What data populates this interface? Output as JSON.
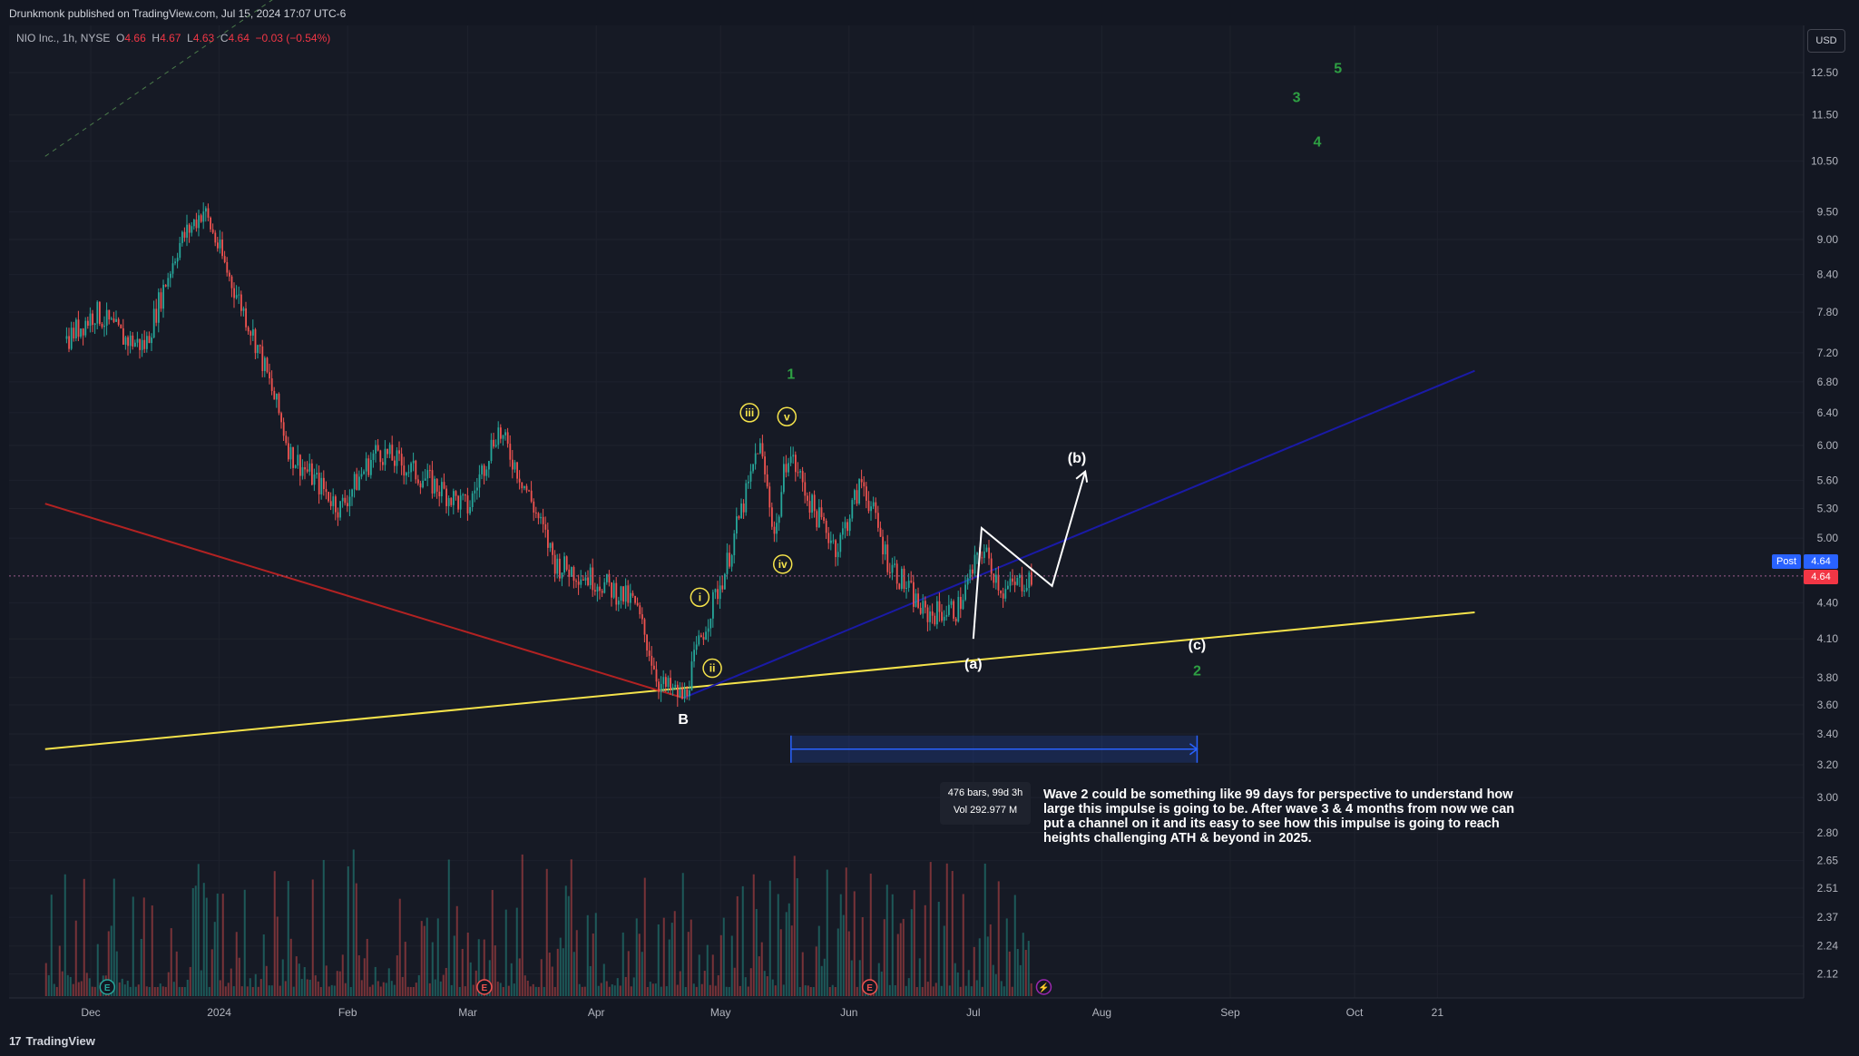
{
  "header": {
    "published_by": "Drunkmonk published on TradingView.com, Jul 15, 2024 17:07 UTC-6"
  },
  "legend": {
    "symbol": "NIO Inc., 1h, NYSE",
    "o_label": "O",
    "o": "4.66",
    "h_label": "H",
    "h": "4.67",
    "l_label": "L",
    "l": "4.63",
    "c_label": "C",
    "c": "4.64",
    "change": "−0.03 (−0.54%)"
  },
  "currency_button": "USD",
  "price_tags": {
    "post_label": "Post",
    "post": "4.64",
    "last": "4.64"
  },
  "measure": {
    "bars": "476 bars, 99d 3h",
    "vol": "Vol 292.977 M"
  },
  "annotation": "Wave 2 could be something like 99 days for perspective to understand how large this impulse is going to be.  After wave 3 & 4 months from now we can put a channel on it and its easy to see how this impulse is going to reach heights challenging ATH & beyond in 2025.",
  "brand": {
    "mark": "17",
    "name": "TradingView"
  },
  "chart_data": {
    "type": "candlestick",
    "symbol": "NIO Inc.",
    "interval": "1h",
    "exchange": "NYSE",
    "currency": "USD",
    "scale": "log",
    "ylim": [
      2.1,
      13.5
    ],
    "y_ticks": [
      "12.50",
      "11.50",
      "10.50",
      "9.50",
      "9.00",
      "8.40",
      "7.80",
      "7.20",
      "6.80",
      "6.40",
      "6.00",
      "5.60",
      "5.30",
      "5.00",
      "4.40",
      "4.10",
      "3.80",
      "3.60",
      "3.40",
      "3.20",
      "3.00",
      "2.80",
      "2.65",
      "2.51",
      "2.37",
      "2.24",
      "2.12"
    ],
    "x_ticks": [
      "Dec",
      "2024",
      "Feb",
      "Mar",
      "Apr",
      "May",
      "Jun",
      "Jul",
      "Aug",
      "Sep",
      "Oct",
      "21"
    ],
    "price_path": [
      {
        "date": "2023-11-25",
        "price": 7.4
      },
      {
        "date": "2023-12-02",
        "price": 7.8
      },
      {
        "date": "2023-12-09",
        "price": 7.4
      },
      {
        "date": "2023-12-14",
        "price": 7.3
      },
      {
        "date": "2023-12-22",
        "price": 8.9
      },
      {
        "date": "2023-12-28",
        "price": 9.55
      },
      {
        "date": "2024-01-03",
        "price": 8.4
      },
      {
        "date": "2024-01-10",
        "price": 7.3
      },
      {
        "date": "2024-01-18",
        "price": 5.9
      },
      {
        "date": "2024-01-30",
        "price": 5.3
      },
      {
        "date": "2024-02-08",
        "price": 5.95
      },
      {
        "date": "2024-02-20",
        "price": 5.6
      },
      {
        "date": "2024-03-01",
        "price": 5.3
      },
      {
        "date": "2024-03-08",
        "price": 6.2
      },
      {
        "date": "2024-03-14",
        "price": 5.6
      },
      {
        "date": "2024-03-22",
        "price": 4.75
      },
      {
        "date": "2024-04-01",
        "price": 4.6
      },
      {
        "date": "2024-04-10",
        "price": 4.4
      },
      {
        "date": "2024-04-16",
        "price": 3.75
      },
      {
        "date": "2024-04-22",
        "price": 3.65
      },
      {
        "date": "2024-04-26",
        "price": 4.1
      },
      {
        "date": "2024-05-02",
        "price": 4.7
      },
      {
        "date": "2024-05-08",
        "price": 5.6
      },
      {
        "date": "2024-05-10",
        "price": 6.05
      },
      {
        "date": "2024-05-14",
        "price": 5.0
      },
      {
        "date": "2024-05-17",
        "price": 5.95
      },
      {
        "date": "2024-05-23",
        "price": 5.3
      },
      {
        "date": "2024-05-29",
        "price": 4.9
      },
      {
        "date": "2024-06-04",
        "price": 5.6
      },
      {
        "date": "2024-06-10",
        "price": 4.8
      },
      {
        "date": "2024-06-19",
        "price": 4.3
      },
      {
        "date": "2024-06-27",
        "price": 4.35
      },
      {
        "date": "2024-07-03",
        "price": 4.9
      },
      {
        "date": "2024-07-08",
        "price": 4.5
      },
      {
        "date": "2024-07-15",
        "price": 4.64
      }
    ],
    "current_price": 4.64,
    "wave_labels": [
      {
        "text": "i",
        "date": "2024-04-26",
        "price": 4.45,
        "style": "circled-yellow"
      },
      {
        "text": "ii",
        "date": "2024-04-29",
        "price": 3.87,
        "style": "circled-yellow"
      },
      {
        "text": "iii",
        "date": "2024-05-08",
        "price": 6.4,
        "style": "circled-yellow"
      },
      {
        "text": "iv",
        "date": "2024-05-16",
        "price": 4.75,
        "style": "circled-yellow"
      },
      {
        "text": "v",
        "date": "2024-05-17",
        "price": 6.35,
        "style": "circled-yellow"
      },
      {
        "text": "1",
        "date": "2024-05-18",
        "price": 6.9,
        "style": "green"
      },
      {
        "text": "B",
        "date": "2024-04-22",
        "price": 3.5,
        "style": "white"
      },
      {
        "text": "(a)",
        "date": "2024-07-01",
        "price": 3.9,
        "style": "white"
      },
      {
        "text": "(b)",
        "date": "2024-07-26",
        "price": 5.85,
        "style": "white"
      },
      {
        "text": "(c)",
        "date": "2024-08-24",
        "price": 4.05,
        "style": "white"
      },
      {
        "text": "2",
        "date": "2024-08-24",
        "price": 3.85,
        "style": "green"
      },
      {
        "text": "3",
        "date": "2024-09-17",
        "price": 11.9,
        "style": "green"
      },
      {
        "text": "4",
        "date": "2024-09-22",
        "price": 10.9,
        "style": "green"
      },
      {
        "text": "5",
        "date": "2024-09-27",
        "price": 12.6,
        "style": "green"
      }
    ],
    "projection_path": [
      {
        "date": "2024-07-01",
        "price": 4.1
      },
      {
        "date": "2024-07-03",
        "price": 5.1
      },
      {
        "date": "2024-07-20",
        "price": 4.55
      },
      {
        "date": "2024-07-28",
        "price": 5.7
      }
    ],
    "trendlines": [
      {
        "name": "yellow-support",
        "color": "#f5e34b",
        "from": {
          "date": "2023-11-20",
          "price": 3.3
        },
        "to": {
          "date": "2024-10-30",
          "price": 4.32
        }
      },
      {
        "name": "blue-support",
        "color": "#1a1aa6",
        "from": {
          "date": "2024-04-22",
          "price": 3.65
        },
        "to": {
          "date": "2024-10-30",
          "price": 6.95
        }
      },
      {
        "name": "red-downtrend",
        "color": "#b22222",
        "from": {
          "date": "2023-11-20",
          "price": 5.35
        },
        "to": {
          "date": "2024-04-22",
          "price": 3.65
        }
      },
      {
        "name": "dashed-upper",
        "color": "#4a7a4a",
        "from": {
          "date": "2023-11-20",
          "price": 10.6
        },
        "to": {
          "date": "2024-01-30",
          "price": 15.8
        }
      }
    ],
    "date_range_measure": {
      "from": "2024-05-18",
      "to": "2024-08-24",
      "bars": 476,
      "duration": "99d 3h",
      "volume": "292.977 M",
      "price": 3.3
    },
    "volume_markers": [
      {
        "type": "earnings",
        "date": "2023-12-05"
      },
      {
        "type": "earnings",
        "date": "2024-03-05"
      },
      {
        "type": "earnings",
        "date": "2024-06-06"
      },
      {
        "type": "dividend-split",
        "date": "2024-07-18"
      }
    ]
  },
  "colors": {
    "background": "#131722",
    "up": "#26a69a",
    "down": "#ef5350",
    "grid": "#1e222d",
    "axis_text": "#b2b5be",
    "wave_yellow": "#f5e34b",
    "wave_green": "#2ea043",
    "accent_blue": "#2962ff",
    "last_price_red": "#f23645"
  }
}
